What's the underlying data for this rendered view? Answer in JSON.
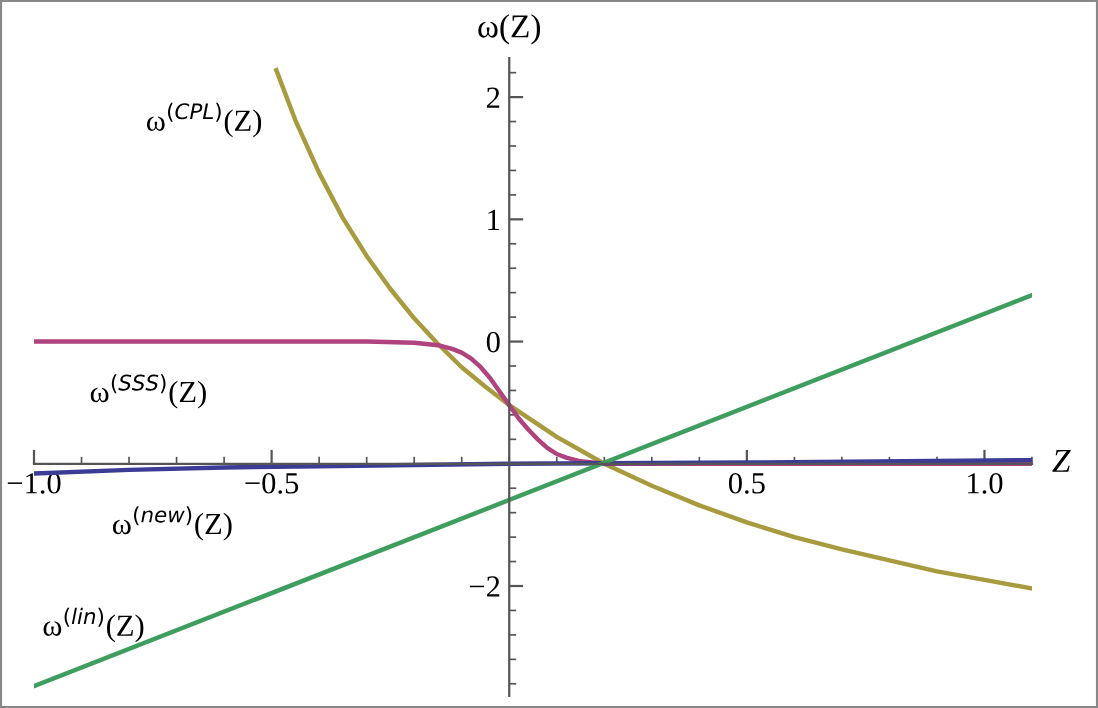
{
  "chart_data": {
    "type": "line",
    "xlabel": "Z",
    "ylabel": "ω(Z)",
    "xlim": [
      -1.0,
      1.1
    ],
    "ylim": [
      -2.9,
      2.32
    ],
    "xticks": [
      {
        "value": -1.0,
        "label": "−1.0"
      },
      {
        "value": -0.5,
        "label": "−0.5"
      },
      {
        "value": 0.5,
        "label": "0.5"
      },
      {
        "value": 1.0,
        "label": "1.0"
      }
    ],
    "yticks": [
      {
        "value": -2,
        "label": "−2"
      },
      0,
      1,
      2
    ],
    "grid": false,
    "legend": false,
    "marker": "none",
    "line_style": "solid",
    "series": [
      {
        "name": "ω$^{(CPL)}$(Z)",
        "color": "#a89a3e",
        "x": [
          -0.49,
          -0.45,
          -0.4,
          -0.35,
          -0.3,
          -0.25,
          -0.2,
          -0.15,
          -0.1,
          -0.05,
          0,
          0.1,
          0.2,
          0.3,
          0.4,
          0.5,
          0.6,
          0.7,
          0.8,
          0.9,
          1.0,
          1.1
        ],
        "values": [
          2.22,
          1.81,
          1.38,
          1.01,
          0.7,
          0.43,
          0.19,
          -0.02,
          -0.21,
          -0.37,
          -0.52,
          -0.78,
          -1.0,
          -1.18,
          -1.34,
          -1.48,
          -1.6,
          -1.7,
          -1.79,
          -1.88,
          -1.95,
          -2.02
        ]
      },
      {
        "name": "ω$^{(SSS)}$(Z)",
        "color": "#b0427e",
        "x": [
          -1.0,
          -0.3,
          -0.2,
          -0.15,
          -0.12,
          -0.1,
          -0.08,
          -0.06,
          -0.04,
          -0.02,
          0,
          0.02,
          0.04,
          0.06,
          0.08,
          0.1,
          0.12,
          0.15,
          0.2,
          1.1
        ],
        "values": [
          0,
          0,
          -0.01,
          -0.03,
          -0.06,
          -0.09,
          -0.14,
          -0.21,
          -0.3,
          -0.41,
          -0.52,
          -0.63,
          -0.72,
          -0.8,
          -0.87,
          -0.92,
          -0.95,
          -0.98,
          -1.0,
          -1.0
        ]
      },
      {
        "name": "ω$^{(new)}$(Z)",
        "color": "#3c3c96",
        "x": [
          -1.0,
          -0.8,
          -0.6,
          -0.4,
          -0.2,
          0,
          0.5,
          1.1
        ],
        "values": [
          -1.08,
          -1.05,
          -1.03,
          -1.02,
          -1.01,
          -1.0,
          -0.99,
          -0.97
        ]
      },
      {
        "name": "ω$^{(lin)}$(Z)",
        "color": "#3e9e5e",
        "x": [
          -1.0,
          1.1
        ],
        "values": [
          -2.82,
          0.38
        ]
      }
    ]
  }
}
